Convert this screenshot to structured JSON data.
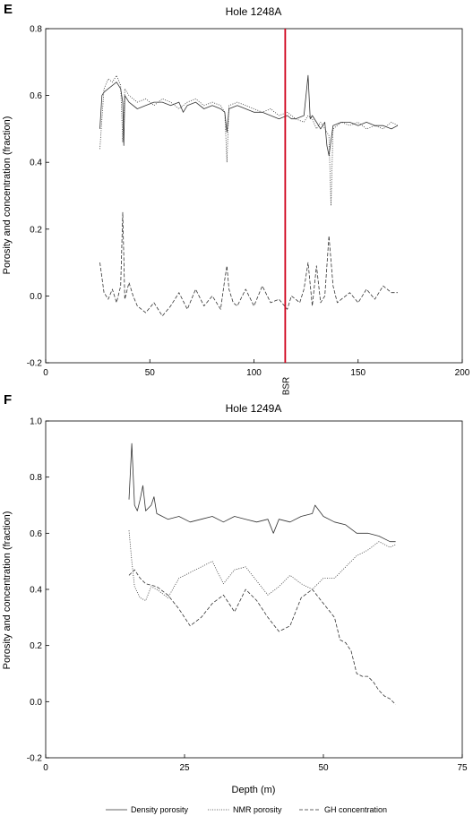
{
  "chart_data": [
    {
      "panel": "E",
      "type": "line",
      "title": "Hole 1248A",
      "xlabel": "",
      "ylabel": "Porosity and concentration (fraction)",
      "xlim": [
        0,
        200
      ],
      "ylim": [
        -0.2,
        0.8
      ],
      "xticks": [
        0,
        50,
        100,
        150,
        200
      ],
      "yticks": [
        -0.2,
        0.0,
        0.2,
        0.4,
        0.6,
        0.8
      ],
      "ytick_labels": [
        "-0.2",
        "0.0",
        "0.2",
        "0.4",
        "0.6",
        "0.8"
      ],
      "annotation": {
        "label": "BSR",
        "x": 115,
        "color": "#d0021b"
      },
      "series": [
        {
          "name": "Density porosity",
          "style": "solid",
          "x": [
            26,
            27,
            28,
            30,
            32,
            34,
            36,
            37,
            37.5,
            38,
            40,
            44,
            48,
            52,
            56,
            60,
            64,
            66,
            68,
            72,
            76,
            80,
            84,
            86,
            87,
            88,
            92,
            96,
            100,
            104,
            108,
            112,
            116,
            118,
            120,
            124,
            126,
            127,
            128,
            130,
            132,
            134,
            135,
            136,
            138,
            142,
            146,
            150,
            154,
            158,
            162,
            166,
            169
          ],
          "y": [
            0.5,
            0.6,
            0.61,
            0.62,
            0.63,
            0.64,
            0.62,
            0.58,
            0.45,
            0.6,
            0.58,
            0.56,
            0.57,
            0.58,
            0.58,
            0.57,
            0.58,
            0.55,
            0.57,
            0.58,
            0.56,
            0.57,
            0.56,
            0.55,
            0.49,
            0.56,
            0.57,
            0.56,
            0.55,
            0.55,
            0.54,
            0.53,
            0.54,
            0.53,
            0.53,
            0.54,
            0.66,
            0.53,
            0.54,
            0.52,
            0.5,
            0.52,
            0.45,
            0.42,
            0.51,
            0.52,
            0.52,
            0.51,
            0.52,
            0.51,
            0.51,
            0.5,
            0.51
          ]
        },
        {
          "name": "NMR porosity",
          "style": "dotted",
          "x": [
            26,
            28,
            30,
            32,
            34,
            36,
            37,
            38,
            40,
            44,
            48,
            52,
            56,
            60,
            64,
            68,
            72,
            76,
            80,
            84,
            86,
            87,
            88,
            92,
            96,
            100,
            104,
            108,
            112,
            116,
            120,
            124,
            126,
            128,
            130,
            132,
            134,
            136,
            137,
            138,
            142,
            146,
            150,
            154,
            158,
            162,
            166,
            169
          ],
          "y": [
            0.44,
            0.62,
            0.65,
            0.64,
            0.66,
            0.63,
            0.46,
            0.62,
            0.6,
            0.58,
            0.59,
            0.57,
            0.59,
            0.58,
            0.56,
            0.58,
            0.59,
            0.57,
            0.58,
            0.57,
            0.55,
            0.4,
            0.57,
            0.58,
            0.57,
            0.56,
            0.55,
            0.56,
            0.54,
            0.55,
            0.53,
            0.52,
            0.54,
            0.53,
            0.5,
            0.52,
            0.5,
            0.48,
            0.27,
            0.5,
            0.52,
            0.51,
            0.52,
            0.5,
            0.51,
            0.5,
            0.52,
            0.51
          ]
        },
        {
          "name": "GH concentration",
          "style": "dashed",
          "x": [
            26,
            28,
            30,
            32,
            34,
            36,
            37,
            38,
            40,
            42,
            44,
            48,
            52,
            56,
            60,
            64,
            68,
            72,
            76,
            80,
            84,
            86,
            87,
            88,
            90,
            92,
            96,
            100,
            104,
            108,
            112,
            116,
            118,
            120,
            122,
            124,
            126,
            128,
            130,
            132,
            134,
            136,
            138,
            140,
            142,
            146,
            150,
            154,
            158,
            162,
            166,
            169
          ],
          "y": [
            0.1,
            0.01,
            -0.01,
            0.02,
            -0.02,
            0.03,
            0.25,
            -0.01,
            0.04,
            0.0,
            -0.03,
            -0.05,
            -0.02,
            -0.06,
            -0.03,
            0.01,
            -0.04,
            0.02,
            -0.03,
            0.0,
            -0.04,
            0.05,
            0.09,
            0.02,
            -0.02,
            -0.03,
            0.02,
            -0.03,
            0.03,
            -0.02,
            -0.01,
            -0.04,
            0.0,
            -0.01,
            -0.02,
            0.02,
            0.1,
            -0.03,
            0.09,
            -0.02,
            0.0,
            0.18,
            0.03,
            -0.02,
            -0.01,
            0.01,
            -0.02,
            0.02,
            -0.01,
            0.03,
            0.01,
            0.01
          ]
        }
      ]
    },
    {
      "panel": "F",
      "type": "line",
      "title": "Hole 1249A",
      "xlabel": "Depth (m)",
      "ylabel": "Porosity and concentration (fraction)",
      "xlim": [
        0,
        75
      ],
      "ylim": [
        -0.2,
        1.0
      ],
      "xticks": [
        0,
        25,
        50,
        75
      ],
      "yticks": [
        -0.2,
        0.0,
        0.2,
        0.4,
        0.6,
        0.8,
        1.0
      ],
      "ytick_labels": [
        "-0.2",
        "0.0",
        "0.2",
        "0.4",
        "0.6",
        "0.8",
        "1.0"
      ],
      "series": [
        {
          "name": "Density porosity",
          "style": "solid",
          "x": [
            15,
            15.5,
            16,
            16.5,
            17,
            17.5,
            18,
            19,
            19.5,
            20,
            21,
            22,
            24,
            26,
            28,
            30,
            32,
            34,
            36,
            38,
            40,
            41,
            42,
            44,
            46,
            48,
            48.5,
            50,
            52,
            54,
            56,
            58,
            60,
            62,
            63
          ],
          "y": [
            0.72,
            0.92,
            0.7,
            0.68,
            0.72,
            0.77,
            0.68,
            0.7,
            0.73,
            0.67,
            0.66,
            0.65,
            0.66,
            0.64,
            0.65,
            0.66,
            0.64,
            0.66,
            0.65,
            0.64,
            0.65,
            0.6,
            0.65,
            0.64,
            0.66,
            0.67,
            0.7,
            0.66,
            0.64,
            0.63,
            0.6,
            0.6,
            0.59,
            0.57,
            0.57
          ]
        },
        {
          "name": "NMR porosity",
          "style": "dotted",
          "x": [
            15,
            15.5,
            16,
            17,
            18,
            19,
            20,
            22,
            24,
            26,
            28,
            30,
            32,
            34,
            36,
            38,
            40,
            42,
            44,
            46,
            48,
            50,
            52,
            54,
            56,
            58,
            60,
            62,
            63
          ],
          "y": [
            0.61,
            0.5,
            0.41,
            0.37,
            0.36,
            0.41,
            0.4,
            0.37,
            0.44,
            0.46,
            0.48,
            0.5,
            0.42,
            0.47,
            0.48,
            0.43,
            0.38,
            0.41,
            0.45,
            0.42,
            0.4,
            0.44,
            0.44,
            0.48,
            0.52,
            0.54,
            0.57,
            0.55,
            0.56
          ]
        },
        {
          "name": "GH concentration",
          "style": "dashed",
          "x": [
            15,
            16,
            17,
            18,
            20,
            22,
            24,
            26,
            28,
            30,
            32,
            34,
            36,
            38,
            40,
            42,
            44,
            46,
            48,
            50,
            52,
            53,
            54,
            55,
            56,
            57,
            58,
            59,
            60,
            61,
            62,
            63
          ],
          "y": [
            0.45,
            0.47,
            0.44,
            0.42,
            0.41,
            0.38,
            0.33,
            0.27,
            0.3,
            0.35,
            0.38,
            0.32,
            0.4,
            0.36,
            0.3,
            0.25,
            0.27,
            0.37,
            0.4,
            0.35,
            0.3,
            0.22,
            0.21,
            0.18,
            0.1,
            0.09,
            0.09,
            0.07,
            0.04,
            0.02,
            0.01,
            -0.01
          ]
        }
      ]
    }
  ],
  "legend": {
    "items": [
      {
        "label": "Density porosity",
        "style": "solid"
      },
      {
        "label": "NMR porosity",
        "style": "dotted"
      },
      {
        "label": "GH concentration",
        "style": "dashed"
      }
    ]
  },
  "colors": {
    "data": "#333333",
    "axis": "#000000",
    "bsr": "#d0021b"
  }
}
